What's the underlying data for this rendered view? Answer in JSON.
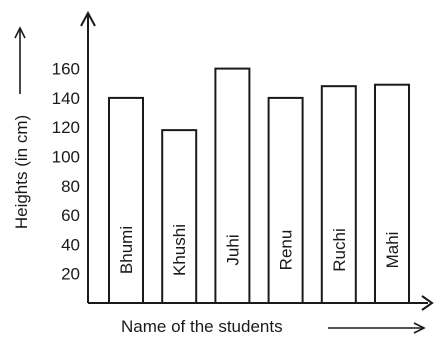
{
  "chart_data": {
    "type": "bar",
    "categories": [
      "Bhumi",
      "Khushi",
      "Juhi",
      "Renu",
      "Ruchi",
      "Mahi"
    ],
    "values": [
      140,
      118,
      160,
      140,
      148,
      149
    ],
    "xlabel": "Name of the students",
    "ylabel": "Heights (in cm)",
    "yticks": [
      20,
      40,
      60,
      80,
      100,
      120,
      140,
      160
    ],
    "ylim": [
      0,
      175
    ],
    "grid": false,
    "bar_color": "#ffffff",
    "bar_outline": "#1a1a1a"
  }
}
